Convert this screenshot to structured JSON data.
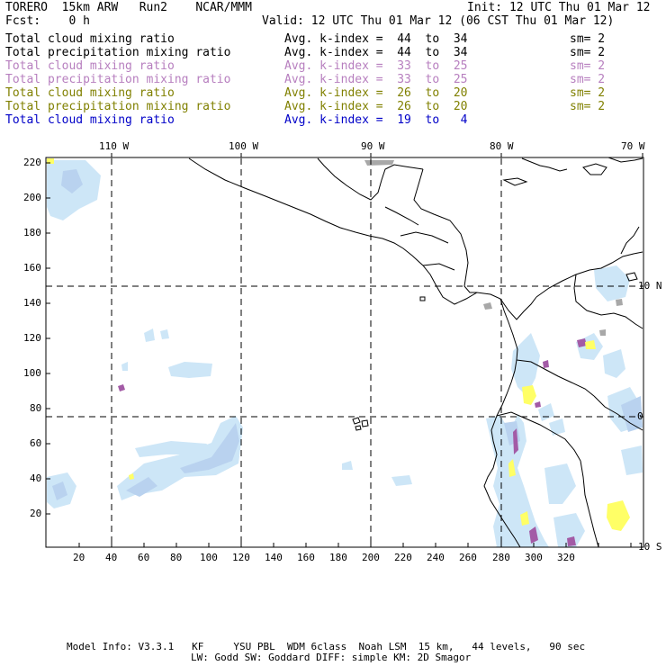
{
  "header": {
    "title": "TORERO  15km ARW   Run2    NCAR/MMM",
    "init": "Init: 12 UTC Thu 01 Mar 12",
    "fcst": "Fcst:    0 h",
    "valid": "Valid: 12 UTC Thu 01 Mar 12 (06 CST Thu 01 Mar 12)"
  },
  "legend": [
    {
      "field": "Total cloud mixing ratio",
      "avg": "Avg. k-index =  44  to  34",
      "sm": "sm= 2",
      "color": "#000000"
    },
    {
      "field": "Total precipitation mixing ratio",
      "avg": "Avg. k-index =  44  to  34",
      "sm": "sm= 2",
      "color": "#000000"
    },
    {
      "field": "Total cloud mixing ratio",
      "avg": "Avg. k-index =  33  to  25",
      "sm": "sm= 2",
      "color": "#b77fbf"
    },
    {
      "field": "Total precipitation mixing ratio",
      "avg": "Avg. k-index =  33  to  25",
      "sm": "sm= 2",
      "color": "#b77fbf"
    },
    {
      "field": "Total cloud mixing ratio",
      "avg": "Avg. k-index =  26  to  20",
      "sm": "sm= 2",
      "color": "#808000"
    },
    {
      "field": "Total precipitation mixing ratio",
      "avg": "Avg. k-index =  26  to  20",
      "sm": "sm= 2",
      "color": "#808000"
    },
    {
      "field": "Total cloud mixing ratio",
      "avg": "Avg. k-index =  19  to   4",
      "sm": "",
      "color": "#0000c8"
    }
  ],
  "map": {
    "lon_labels": [
      "110 W",
      "100 W",
      "90 W",
      "80 W",
      "70 W"
    ],
    "lat_labels": [
      "10 N",
      "0",
      "10 S"
    ],
    "y_ticks": [
      "220",
      "200",
      "180",
      "160",
      "140",
      "120",
      "100",
      "80",
      "60",
      "40",
      "20"
    ],
    "x_ticks": [
      "20",
      "40",
      "60",
      "80",
      "100",
      "120",
      "140",
      "160",
      "180",
      "200",
      "220",
      "240",
      "260",
      "280",
      "300",
      "320"
    ],
    "colors": {
      "light_blue": "#cde6f7",
      "mid_blue": "#b9d2ef",
      "purple": "#a35ba6",
      "yellow": "#ffff66",
      "gray": "#a8a8a8"
    }
  },
  "footer": {
    "line1": "Model Info: V3.3.1   KF     YSU PBL  WDM 6class  Noah LSM  15 km,   44 levels,   90 sec",
    "line2": "LW: Godd SW: Goddard DIFF: simple KM: 2D Smagor"
  }
}
